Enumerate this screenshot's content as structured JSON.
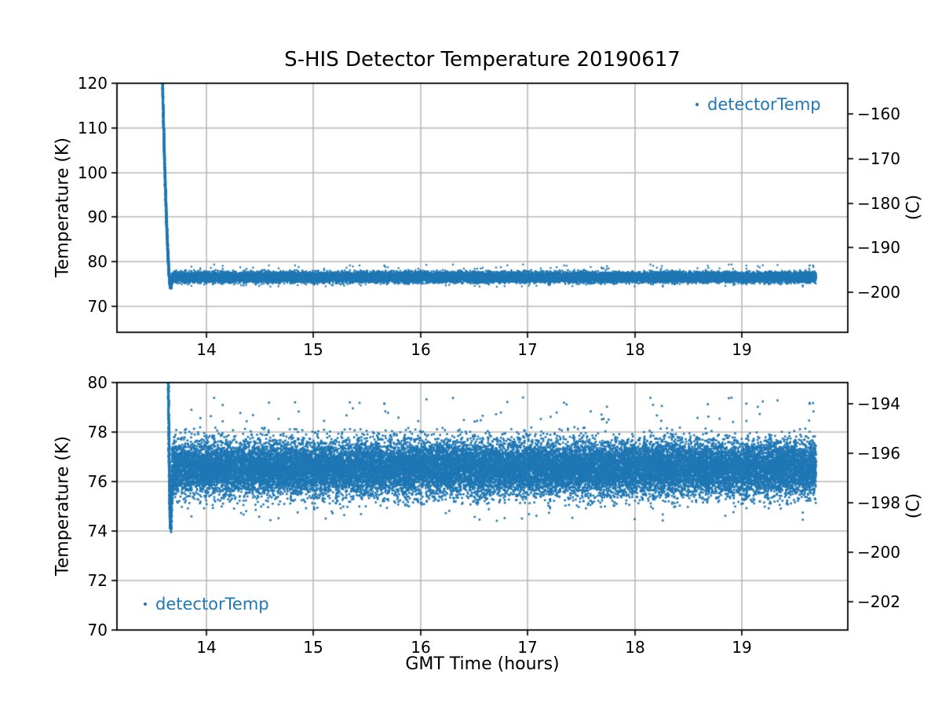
{
  "figure": {
    "background": "#ffffff",
    "accent_color": "#1f77b4",
    "grid_color": "#b8b8b8",
    "spine_color": "#000000",
    "tick_color": "#000000"
  },
  "chart_data": [
    {
      "type": "scatter",
      "title": "S-HIS Detector Temperature 20190617",
      "xlabel": "",
      "ylabel": "Temperature (K)",
      "ylabel_right": "(C)",
      "xlim": [
        13.164,
        19.99
      ],
      "ylim": [
        64.2,
        120
      ],
      "xticks": [
        14,
        15,
        16,
        17,
        18,
        19
      ],
      "yticks": [
        70,
        80,
        90,
        100,
        110,
        120
      ],
      "yticks_right": [
        -160,
        -170,
        -180,
        -190,
        -200
      ],
      "right_axis_offset_k": 273.15,
      "grid": true,
      "legend": {
        "label": "detectorTemp",
        "position": "upper right"
      },
      "series": [
        {
          "name": "detectorTemp",
          "color": "#1f77b4",
          "marker_px": 2.2,
          "segments": [
            {
              "kind": "cooldown",
              "x0": 13.586,
              "y0": 124,
              "x1": 13.667,
              "y1": 74.1,
              "pow": 1.7,
              "points": 1600,
              "x_jitter": 0.006
            },
            {
              "kind": "recovery",
              "x0": 13.667,
              "y0": 74.1,
              "x1": 13.697,
              "y1": 76.3,
              "points": 150,
              "x_jitter": 0.006,
              "sigma": 0.18
            },
            {
              "kind": "band",
              "x0": 13.675,
              "x1": 19.695,
              "mean": 76.55,
              "sigma": 0.55,
              "clip": 3.0,
              "points": 26000
            },
            {
              "kind": "sparse",
              "x0": 13.75,
              "x1": 19.68,
              "ymin": 78.35,
              "ymax": 79.4,
              "points": 70
            },
            {
              "kind": "sparse",
              "x0": 13.75,
              "x1": 19.68,
              "ymin": 74.4,
              "ymax": 75.15,
              "points": 45
            }
          ]
        }
      ]
    },
    {
      "type": "scatter",
      "title": "",
      "xlabel": "GMT Time (hours)",
      "ylabel": "Temperature (K)",
      "ylabel_right": "(C)",
      "xlim": [
        13.164,
        19.99
      ],
      "ylim": [
        70,
        80
      ],
      "xticks": [
        14,
        15,
        16,
        17,
        18,
        19
      ],
      "yticks": [
        70,
        72,
        74,
        76,
        78,
        80
      ],
      "yticks_right": [
        -194,
        -196,
        -198,
        -200,
        -202
      ],
      "right_axis_offset_k": 273.15,
      "grid": true,
      "legend": {
        "label": "detectorTemp",
        "position": "lower left"
      },
      "series": [
        {
          "name": "detectorTemp",
          "color": "#1f77b4",
          "marker_px": 2.6,
          "segments": [
            {
              "kind": "cooldown",
              "x0": 13.586,
              "y0": 124,
              "x1": 13.667,
              "y1": 74.1,
              "pow": 1.7,
              "points": 1600,
              "x_jitter": 0.006
            },
            {
              "kind": "recovery",
              "x0": 13.667,
              "y0": 74.1,
              "x1": 13.697,
              "y1": 76.3,
              "points": 150,
              "x_jitter": 0.006,
              "sigma": 0.18
            },
            {
              "kind": "band",
              "x0": 13.675,
              "x1": 19.695,
              "mean": 76.55,
              "sigma": 0.55,
              "clip": 3.0,
              "points": 26000
            },
            {
              "kind": "sparse",
              "x0": 13.75,
              "x1": 19.68,
              "ymin": 78.35,
              "ymax": 79.4,
              "points": 70
            },
            {
              "kind": "sparse",
              "x0": 13.75,
              "x1": 19.68,
              "ymin": 74.4,
              "ymax": 75.15,
              "points": 45
            }
          ]
        }
      ]
    }
  ]
}
